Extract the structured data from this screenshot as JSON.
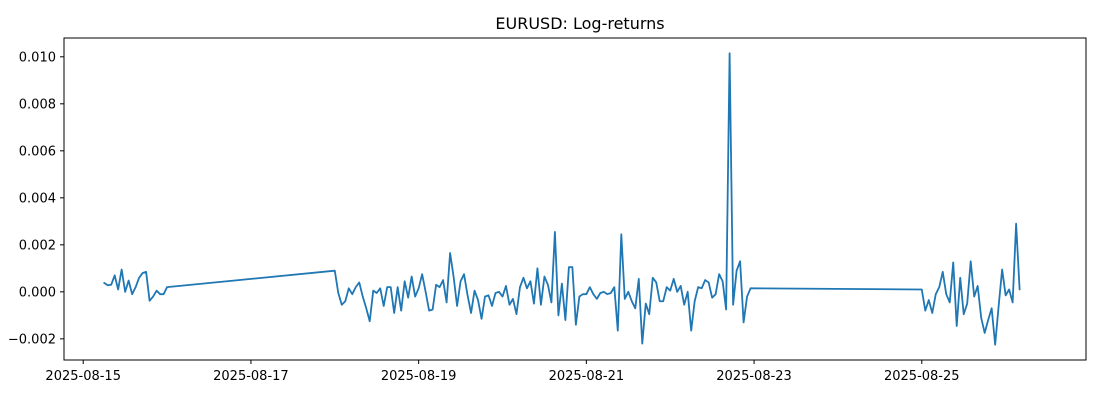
{
  "chart_data": {
    "type": "line",
    "title": "EURUSD: Log-returns",
    "xlabel": "",
    "ylabel": "",
    "x_axis_type": "date",
    "xlim": [
      "2025-08-14 18:30",
      "2025-08-26 23:00"
    ],
    "ylim": [
      -0.0029,
      0.0108
    ],
    "x_ticks": [
      "2025-08-15",
      "2025-08-17",
      "2025-08-19",
      "2025-08-21",
      "2025-08-23",
      "2025-08-25"
    ],
    "y_ticks": [
      0.01,
      0.008,
      0.006,
      0.004,
      0.002,
      0.0,
      -0.002
    ],
    "y_tick_labels": [
      "0.010",
      "0.008",
      "0.006",
      "0.004",
      "0.002",
      "0.000",
      "−0.002"
    ],
    "grid": false,
    "legend": "none",
    "series": [
      {
        "color": "#1f77b4",
        "points": [
          [
            "2025-08-15 06:00",
            0.00038
          ],
          [
            "2025-08-15 07:00",
            0.00028
          ],
          [
            "2025-08-15 08:00",
            0.0003
          ],
          [
            "2025-08-15 09:00",
            0.0007
          ],
          [
            "2025-08-15 10:00",
            0.0001
          ],
          [
            "2025-08-15 11:00",
            0.00095
          ],
          [
            "2025-08-15 12:00",
            0.0
          ],
          [
            "2025-08-15 13:00",
            0.00048
          ],
          [
            "2025-08-15 14:00",
            -0.0001
          ],
          [
            "2025-08-15 15:00",
            0.0002
          ],
          [
            "2025-08-15 16:00",
            0.0006
          ],
          [
            "2025-08-15 17:00",
            0.0008
          ],
          [
            "2025-08-15 18:00",
            0.00085
          ],
          [
            "2025-08-15 19:00",
            -0.00038
          ],
          [
            "2025-08-15 20:00",
            -0.0002
          ],
          [
            "2025-08-15 21:00",
            5e-05
          ],
          [
            "2025-08-15 22:00",
            -0.0001
          ],
          [
            "2025-08-15 23:00",
            -0.0001
          ],
          [
            "2025-08-16 00:00",
            0.0002
          ],
          [
            "2025-08-18 00:00",
            0.0009
          ],
          [
            "2025-08-18 01:00",
            -5e-05
          ],
          [
            "2025-08-18 02:00",
            -0.00055
          ],
          [
            "2025-08-18 03:00",
            -0.0004
          ],
          [
            "2025-08-18 04:00",
            0.00015
          ],
          [
            "2025-08-18 05:00",
            -0.0001
          ],
          [
            "2025-08-18 06:00",
            0.0002
          ],
          [
            "2025-08-18 07:00",
            0.0004
          ],
          [
            "2025-08-18 08:00",
            -0.0002
          ],
          [
            "2025-08-18 09:00",
            -0.0007
          ],
          [
            "2025-08-18 10:00",
            -0.00125
          ],
          [
            "2025-08-18 11:00",
            5e-05
          ],
          [
            "2025-08-18 12:00",
            -5e-05
          ],
          [
            "2025-08-18 13:00",
            0.00015
          ],
          [
            "2025-08-18 14:00",
            -0.0006
          ],
          [
            "2025-08-18 15:00",
            0.0002
          ],
          [
            "2025-08-18 16:00",
            0.0002
          ],
          [
            "2025-08-18 17:00",
            -0.0009
          ],
          [
            "2025-08-18 18:00",
            0.0002
          ],
          [
            "2025-08-18 19:00",
            -0.0008
          ],
          [
            "2025-08-18 20:00",
            0.00045
          ],
          [
            "2025-08-18 21:00",
            -0.00025
          ],
          [
            "2025-08-18 22:00",
            0.00065
          ],
          [
            "2025-08-18 23:00",
            -0.0002
          ],
          [
            "2025-08-19 00:00",
            0.00015
          ],
          [
            "2025-08-19 01:00",
            0.00075
          ],
          [
            "2025-08-19 02:00",
            0.0
          ],
          [
            "2025-08-19 03:00",
            -0.0008
          ],
          [
            "2025-08-19 04:00",
            -0.00075
          ],
          [
            "2025-08-19 05:00",
            0.0003
          ],
          [
            "2025-08-19 06:00",
            0.0002
          ],
          [
            "2025-08-19 07:00",
            0.0005
          ],
          [
            "2025-08-19 08:00",
            -0.00045
          ],
          [
            "2025-08-19 09:00",
            0.00165
          ],
          [
            "2025-08-19 10:00",
            0.00065
          ],
          [
            "2025-08-19 11:00",
            -0.0006
          ],
          [
            "2025-08-19 12:00",
            0.00045
          ],
          [
            "2025-08-19 13:00",
            0.00075
          ],
          [
            "2025-08-19 14:00",
            -0.00015
          ],
          [
            "2025-08-19 15:00",
            -0.0009
          ],
          [
            "2025-08-19 16:00",
            5e-05
          ],
          [
            "2025-08-19 17:00",
            -0.00035
          ],
          [
            "2025-08-19 18:00",
            -0.00115
          ],
          [
            "2025-08-19 19:00",
            -0.0002
          ],
          [
            "2025-08-19 20:00",
            -0.00015
          ],
          [
            "2025-08-19 21:00",
            -0.0006
          ],
          [
            "2025-08-19 22:00",
            -5e-05
          ],
          [
            "2025-08-19 23:00",
            0.0
          ],
          [
            "2025-08-20 00:00",
            -0.0002
          ],
          [
            "2025-08-20 01:00",
            0.00025
          ],
          [
            "2025-08-20 02:00",
            -0.00055
          ],
          [
            "2025-08-20 03:00",
            -0.0003
          ],
          [
            "2025-08-20 04:00",
            -0.00095
          ],
          [
            "2025-08-20 05:00",
            0.0002
          ],
          [
            "2025-08-20 06:00",
            0.0006
          ],
          [
            "2025-08-20 07:00",
            0.00015
          ],
          [
            "2025-08-20 08:00",
            0.00045
          ],
          [
            "2025-08-20 09:00",
            -0.0005
          ],
          [
            "2025-08-20 10:00",
            0.001
          ],
          [
            "2025-08-20 11:00",
            -0.00055
          ],
          [
            "2025-08-20 12:00",
            0.00065
          ],
          [
            "2025-08-20 13:00",
            0.0003
          ],
          [
            "2025-08-20 14:00",
            -0.00045
          ],
          [
            "2025-08-20 15:00",
            0.00255
          ],
          [
            "2025-08-20 16:00",
            -0.001
          ],
          [
            "2025-08-20 17:00",
            0.00035
          ],
          [
            "2025-08-20 18:00",
            -0.0012
          ],
          [
            "2025-08-20 19:00",
            0.00105
          ],
          [
            "2025-08-20 20:00",
            0.00105
          ],
          [
            "2025-08-20 21:00",
            -0.0014
          ],
          [
            "2025-08-20 22:00",
            -0.0002
          ],
          [
            "2025-08-20 23:00",
            -0.0001
          ],
          [
            "2025-08-21 00:00",
            -0.0001
          ],
          [
            "2025-08-21 01:00",
            0.0002
          ],
          [
            "2025-08-21 02:00",
            -0.0001
          ],
          [
            "2025-08-21 03:00",
            -0.0003
          ],
          [
            "2025-08-21 04:00",
            -5e-05
          ],
          [
            "2025-08-21 05:00",
            0.0
          ],
          [
            "2025-08-21 06:00",
            -0.0001
          ],
          [
            "2025-08-21 07:00",
            -5e-05
          ],
          [
            "2025-08-21 08:00",
            0.0002
          ],
          [
            "2025-08-21 09:00",
            -0.00165
          ],
          [
            "2025-08-21 10:00",
            0.00245
          ],
          [
            "2025-08-21 11:00",
            -0.0003
          ],
          [
            "2025-08-21 12:00",
            0.0
          ],
          [
            "2025-08-21 13:00",
            -0.0004
          ],
          [
            "2025-08-21 14:00",
            -0.0007
          ],
          [
            "2025-08-21 15:00",
            0.00055
          ],
          [
            "2025-08-21 16:00",
            -0.0022
          ],
          [
            "2025-08-21 17:00",
            -0.0005
          ],
          [
            "2025-08-21 18:00",
            -0.00095
          ],
          [
            "2025-08-21 19:00",
            0.0006
          ],
          [
            "2025-08-21 20:00",
            0.0004
          ],
          [
            "2025-08-21 21:00",
            -0.0004
          ],
          [
            "2025-08-21 22:00",
            -0.0004
          ],
          [
            "2025-08-21 23:00",
            0.0002
          ],
          [
            "2025-08-22 00:00",
            5e-05
          ],
          [
            "2025-08-22 01:00",
            0.00055
          ],
          [
            "2025-08-22 02:00",
            0.0
          ],
          [
            "2025-08-22 03:00",
            0.00025
          ],
          [
            "2025-08-22 04:00",
            -0.00055
          ],
          [
            "2025-08-22 05:00",
            0.0
          ],
          [
            "2025-08-22 06:00",
            -0.00165
          ],
          [
            "2025-08-22 07:00",
            -0.0004
          ],
          [
            "2025-08-22 08:00",
            0.0002
          ],
          [
            "2025-08-22 09:00",
            0.00015
          ],
          [
            "2025-08-22 10:00",
            0.0005
          ],
          [
            "2025-08-22 11:00",
            0.0004
          ],
          [
            "2025-08-22 12:00",
            -0.00025
          ],
          [
            "2025-08-22 13:00",
            -0.0001
          ],
          [
            "2025-08-22 14:00",
            0.00075
          ],
          [
            "2025-08-22 15:00",
            0.00045
          ],
          [
            "2025-08-22 16:00",
            -0.00075
          ],
          [
            "2025-08-22 17:00",
            0.01015
          ],
          [
            "2025-08-22 18:00",
            -0.00055
          ],
          [
            "2025-08-22 19:00",
            0.0009
          ],
          [
            "2025-08-22 20:00",
            0.0013
          ],
          [
            "2025-08-22 21:00",
            -0.0013
          ],
          [
            "2025-08-22 22:00",
            -0.0002
          ],
          [
            "2025-08-22 23:00",
            0.00015
          ],
          [
            "2025-08-25 00:00",
            0.0001
          ],
          [
            "2025-08-25 01:00",
            -0.0008
          ],
          [
            "2025-08-25 02:00",
            -0.00035
          ],
          [
            "2025-08-25 03:00",
            -0.0009
          ],
          [
            "2025-08-25 04:00",
            -0.0001
          ],
          [
            "2025-08-25 05:00",
            0.0002
          ],
          [
            "2025-08-25 06:00",
            0.00085
          ],
          [
            "2025-08-25 07:00",
            -0.0001
          ],
          [
            "2025-08-25 08:00",
            -0.00045
          ],
          [
            "2025-08-25 09:00",
            0.00125
          ],
          [
            "2025-08-25 10:00",
            -0.00145
          ],
          [
            "2025-08-25 11:00",
            0.0006
          ],
          [
            "2025-08-25 12:00",
            -0.00095
          ],
          [
            "2025-08-25 13:00",
            -0.0005
          ],
          [
            "2025-08-25 14:00",
            0.0013
          ],
          [
            "2025-08-25 15:00",
            -0.0002
          ],
          [
            "2025-08-25 16:00",
            0.00025
          ],
          [
            "2025-08-25 17:00",
            -0.0011
          ],
          [
            "2025-08-25 18:00",
            -0.00175
          ],
          [
            "2025-08-25 19:00",
            -0.0012
          ],
          [
            "2025-08-25 20:00",
            -0.0007
          ],
          [
            "2025-08-25 21:00",
            -0.00225
          ],
          [
            "2025-08-25 22:00",
            -0.0006
          ],
          [
            "2025-08-25 23:00",
            0.00095
          ],
          [
            "2025-08-26 00:00",
            -0.00015
          ],
          [
            "2025-08-26 01:00",
            0.0001
          ],
          [
            "2025-08-26 02:00",
            -0.00045
          ],
          [
            "2025-08-26 03:00",
            0.0029
          ],
          [
            "2025-08-26 04:00",
            0.0001
          ]
        ]
      }
    ]
  }
}
